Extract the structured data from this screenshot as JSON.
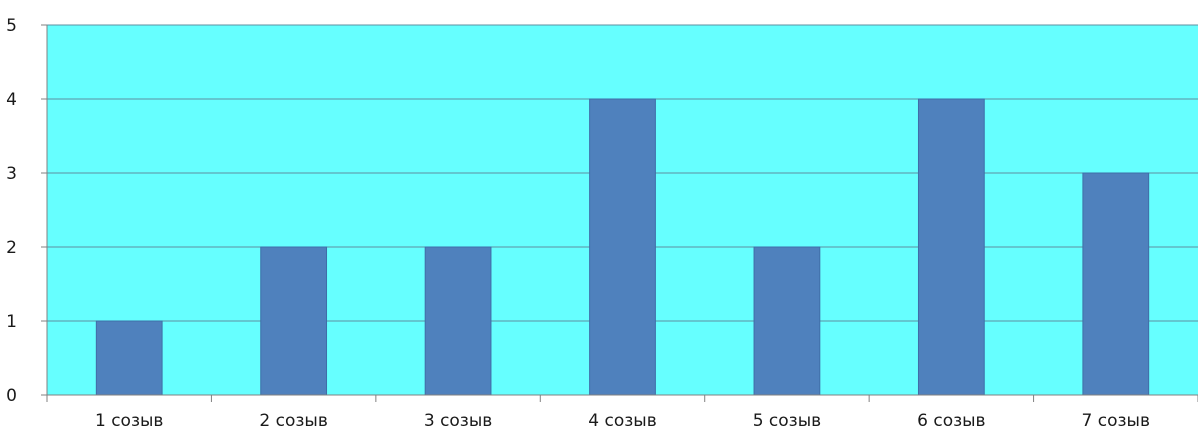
{
  "chart_data": {
    "type": "bar",
    "categories": [
      "1 созыв",
      "2 созыв",
      "3 созыв",
      "4 созыв",
      "5 созыв",
      "6 созыв",
      "7 созыв"
    ],
    "values": [
      1,
      2,
      2,
      4,
      2,
      4,
      3
    ],
    "title": "",
    "xlabel": "",
    "ylabel": "",
    "ylim": [
      0,
      5
    ],
    "yticks": [
      "0",
      "1",
      "2",
      "3",
      "4",
      "5"
    ],
    "grid": true,
    "legend": "none",
    "colors": {
      "plot_background": "#66ffff",
      "bar": "#4f81bd",
      "bar_edge": "#3f6ea8",
      "gridline": "#5f8fa0",
      "axis": "#808080"
    }
  }
}
